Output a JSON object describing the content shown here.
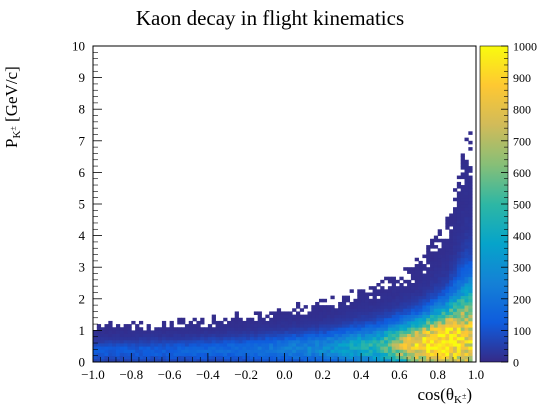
{
  "chart_data": {
    "type": "heatmap",
    "title": "Kaon decay in flight kinematics",
    "xlabel": {
      "base": "cos(θ",
      "sub": "K",
      "sup": "±",
      "close": ")"
    },
    "ylabel": {
      "base": "P",
      "sub": "K",
      "sup": "±",
      "unit": " [GeV/c]"
    },
    "xlim": [
      -1.0,
      1.0
    ],
    "ylim": [
      0,
      10
    ],
    "zlim": [
      0,
      1000
    ],
    "x_ticks": [
      "−1.0",
      "−0.8",
      "−0.6",
      "−0.4",
      "−0.2",
      "0.0",
      "0.2",
      "0.4",
      "0.6",
      "0.8",
      "1.0"
    ],
    "y_ticks": [
      "0",
      "1",
      "2",
      "3",
      "4",
      "5",
      "6",
      "7",
      "8",
      "9",
      "10"
    ],
    "z_ticks": [
      "0",
      "100",
      "200",
      "300",
      "400",
      "500",
      "600",
      "700",
      "800",
      "900",
      "1000"
    ],
    "colormap": [
      "#352a87",
      "#0f5cdd",
      "#1481d6",
      "#06a4ca",
      "#2eb7a4",
      "#87bf77",
      "#d1bb59",
      "#fec832",
      "#f9fb0e"
    ],
    "band": {
      "description": "ridge of counts",
      "ridge": [
        {
          "cos": -1.0,
          "p_low": 0.0,
          "p_high": 1.1,
          "p_peak": 0.35,
          "peak": 90
        },
        {
          "cos": -0.6,
          "p_low": 0.0,
          "p_high": 1.2,
          "p_peak": 0.35,
          "peak": 110
        },
        {
          "cos": -0.2,
          "p_low": 0.0,
          "p_high": 1.4,
          "p_peak": 0.4,
          "peak": 150
        },
        {
          "cos": 0.2,
          "p_low": 0.0,
          "p_high": 1.8,
          "p_peak": 0.45,
          "peak": 260
        },
        {
          "cos": 0.5,
          "p_low": 0.0,
          "p_high": 2.4,
          "p_peak": 0.5,
          "peak": 450
        },
        {
          "cos": 0.7,
          "p_low": 0.0,
          "p_high": 3.0,
          "p_peak": 0.55,
          "peak": 900
        },
        {
          "cos": 0.85,
          "p_low": 0.0,
          "p_high": 4.2,
          "p_peak": 0.65,
          "peak": 1000
        },
        {
          "cos": 0.95,
          "p_low": 0.0,
          "p_high": 6.6,
          "p_peak": 0.7,
          "peak": 800
        }
      ]
    }
  }
}
